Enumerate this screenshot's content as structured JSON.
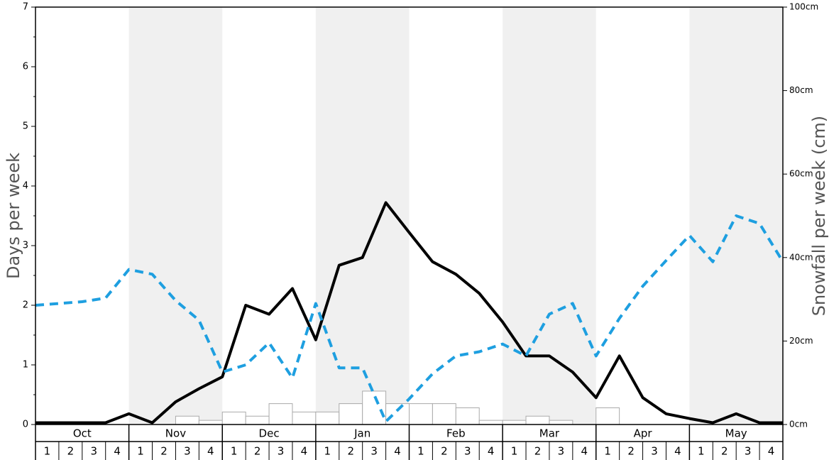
{
  "chart_data": {
    "type": "line",
    "months": [
      "Oct",
      "Nov",
      "Dec",
      "Jan",
      "Feb",
      "Mar",
      "Apr",
      "May"
    ],
    "weeks": [
      "1",
      "2",
      "3",
      "4"
    ],
    "left_axis": {
      "label": "Days per week",
      "ylim": [
        0,
        7
      ],
      "ticks": [
        0,
        1,
        2,
        3,
        4,
        5,
        6,
        7
      ],
      "tick_labels": [
        "0",
        "1",
        "2",
        "3",
        "4",
        "5",
        "6",
        "7"
      ]
    },
    "right_axis": {
      "label": "Snowfall per week (cm)",
      "ylim": [
        0,
        100
      ],
      "ticks": [
        0,
        20,
        40,
        60,
        80,
        100
      ],
      "tick_labels": [
        "0cm",
        "20cm",
        "40cm",
        "60cm",
        "80cm",
        "100cm"
      ]
    },
    "series": [
      {
        "axis": "left",
        "style": "solid",
        "color": "#000000",
        "values": [
          0.03,
          0.03,
          0.03,
          0.03,
          0.18,
          0.03,
          0.38,
          0.6,
          0.8,
          2.0,
          1.85,
          2.28,
          1.42,
          2.67,
          2.8,
          3.72,
          3.22,
          2.73,
          2.52,
          2.2,
          1.72,
          1.15,
          1.15,
          0.88,
          0.45,
          1.15,
          0.45,
          0.18,
          0.1,
          0.03,
          0.18,
          0.03,
          0.03
        ]
      },
      {
        "axis": "left",
        "style": "dashed",
        "color": "#1e9fe0",
        "values": [
          2.0,
          2.03,
          2.06,
          2.12,
          2.6,
          2.52,
          2.08,
          1.75,
          0.88,
          1.0,
          1.37,
          0.78,
          2.03,
          0.95,
          0.95,
          0.05,
          0.43,
          0.85,
          1.15,
          1.22,
          1.35,
          1.15,
          1.85,
          2.03,
          1.15,
          1.78,
          2.32,
          2.75,
          3.17,
          2.73,
          3.5,
          3.37,
          2.73
        ]
      },
      {
        "axis": "right",
        "style": "bar",
        "values": [
          0,
          0,
          0,
          0,
          0,
          0,
          2,
          1,
          3,
          2,
          5,
          3,
          3,
          5,
          8,
          5,
          5,
          5,
          4,
          1,
          1,
          2,
          1,
          0,
          4,
          0,
          0,
          0,
          0,
          0,
          0,
          0
        ]
      }
    ],
    "grid": false,
    "shaded_months": [
      "Nov",
      "Jan",
      "Mar",
      "May"
    ],
    "colors": {
      "shade": "#f0f0f0",
      "bar_fill": "#ffffff",
      "bar_stroke": "#aaaaaa",
      "solid_line": "#000000",
      "dashed_line": "#1e9fe0"
    }
  }
}
